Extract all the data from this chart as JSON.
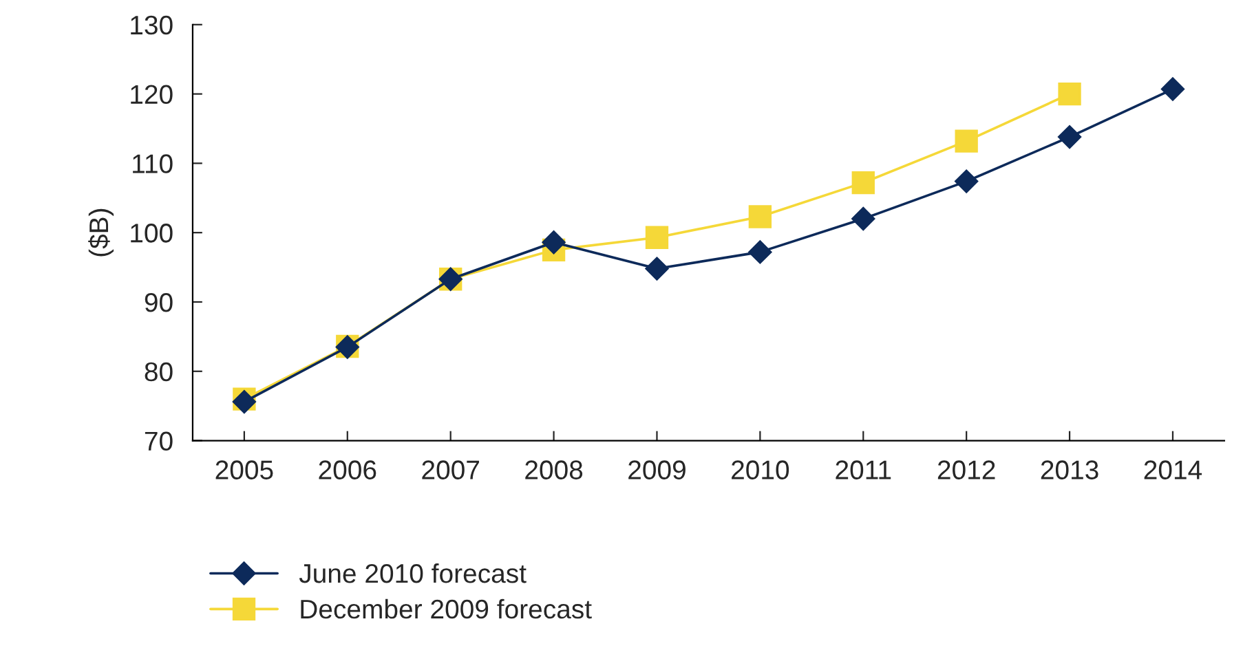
{
  "chart_data": {
    "type": "line",
    "ylabel": "($B)",
    "categories": [
      "2005",
      "2006",
      "2007",
      "2008",
      "2009",
      "2010",
      "2011",
      "2012",
      "2013",
      "2014"
    ],
    "series": [
      {
        "name": "June 2010 forecast",
        "color": "#0d2a5a",
        "marker": "diamond",
        "values": [
          75.6,
          83.5,
          93.3,
          98.6,
          94.8,
          97.2,
          102,
          107.4,
          113.8,
          120.7
        ]
      },
      {
        "name": "December 2009 forecast",
        "color": "#f5d838",
        "marker": "square",
        "values": [
          76,
          83.6,
          93.3,
          97.5,
          99.3,
          102.3,
          107.2,
          113.2,
          120,
          null
        ]
      }
    ],
    "ylim": [
      70,
      130
    ],
    "yticks": [
      70,
      80,
      90,
      100,
      110,
      120,
      130
    ],
    "grid": false,
    "legend": "bottom",
    "line_style": "solid"
  }
}
